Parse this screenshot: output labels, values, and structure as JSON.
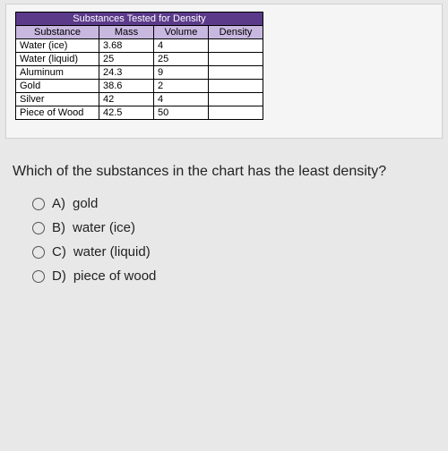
{
  "table": {
    "title": "Substances Tested for Density",
    "title_bg": "#5b3a8a",
    "title_fg": "#ffffff",
    "header_bg": "#c8b8e0",
    "header_fg": "#000000",
    "border_color": "#000000",
    "columns": [
      "Substance",
      "Mass",
      "Volume",
      "Density"
    ],
    "rows": [
      [
        "Water (ice)",
        "3.68",
        "4",
        ""
      ],
      [
        "Water (liquid)",
        "25",
        "25",
        ""
      ],
      [
        "Aluminum",
        "24.3",
        "9",
        ""
      ],
      [
        "Gold",
        "38.6",
        "2",
        ""
      ],
      [
        "Silver",
        "42",
        "4",
        ""
      ],
      [
        "Piece of Wood",
        "42.5",
        "50",
        ""
      ]
    ]
  },
  "question": "Which of the substances in the chart has the least density?",
  "options": [
    {
      "letter": "A)",
      "text": "gold"
    },
    {
      "letter": "B)",
      "text": "water (ice)"
    },
    {
      "letter": "C)",
      "text": "water (liquid)"
    },
    {
      "letter": "D)",
      "text": "piece of wood"
    }
  ]
}
